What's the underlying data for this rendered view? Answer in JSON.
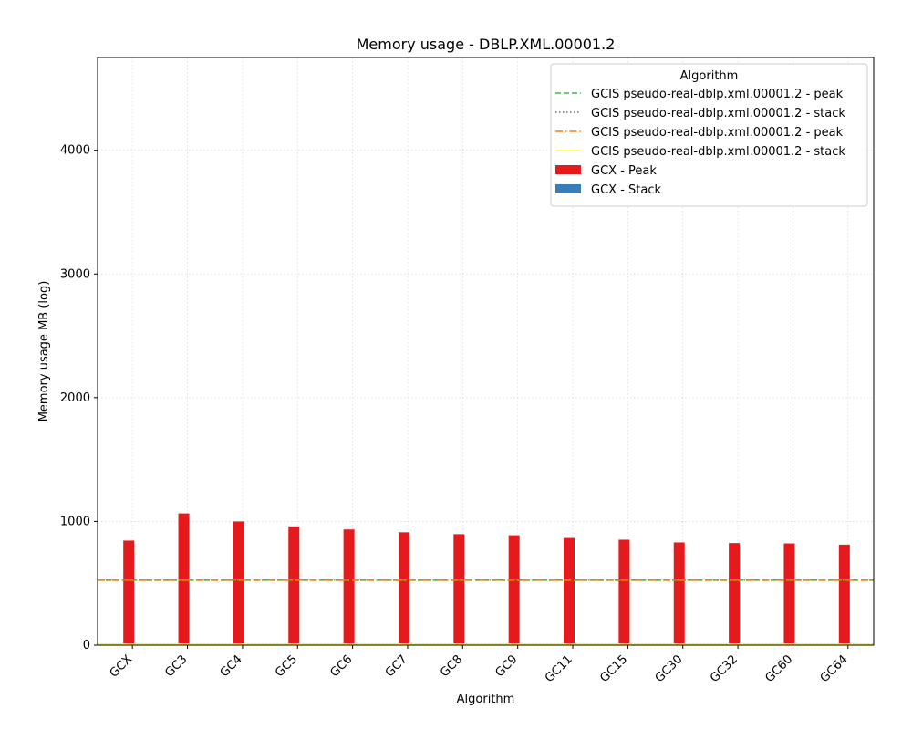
{
  "chart_data": {
    "type": "bar",
    "title": "Memory usage -  DBLP.XML.00001.2",
    "xlabel": "Algorithm",
    "ylabel": "Memory usage MB (log)",
    "ylim": [
      0,
      4750
    ],
    "yticks": [
      0,
      1000,
      2000,
      3000,
      4000
    ],
    "grid": true,
    "categories": [
      "GCX",
      "GC3",
      "GC4",
      "GC5",
      "GC6",
      "GC7",
      "GC8",
      "GC9",
      "GC11",
      "GC15",
      "GC30",
      "GC32",
      "GC60",
      "GC64"
    ],
    "series": [
      {
        "name": "GCX - Peak",
        "color": "#e41a1c",
        "values": [
          845,
          1065,
          1000,
          960,
          935,
          912,
          897,
          888,
          866,
          852,
          830,
          825,
          822,
          812
        ]
      },
      {
        "name": "GCX - Stack",
        "color": "#377eb8",
        "values": [
          2,
          2,
          2,
          2,
          2,
          2,
          2,
          2,
          2,
          2,
          2,
          2,
          2,
          2
        ]
      }
    ],
    "reference_lines": [
      {
        "name": "GCIS pseudo-real-dblp.xml.00001.2 - peak",
        "value": 525,
        "color": "#4daf4a",
        "style": "dashed"
      },
      {
        "name": "GCIS pseudo-real-dblp.xml.00001.2 - stack",
        "value": 8,
        "color": "#984ea3",
        "style": "dotted"
      },
      {
        "name": "GCIS pseudo-real-dblp.xml.00001.2 - peak",
        "value": 525,
        "color": "#ff7f00",
        "style": "dashdot"
      },
      {
        "name": "GCIS pseudo-real-dblp.xml.00001.2 - stack",
        "value": 8,
        "color": "#ffff33",
        "style": "solid"
      }
    ],
    "legend": {
      "title": "Algorithm",
      "placement": "top-right"
    }
  }
}
